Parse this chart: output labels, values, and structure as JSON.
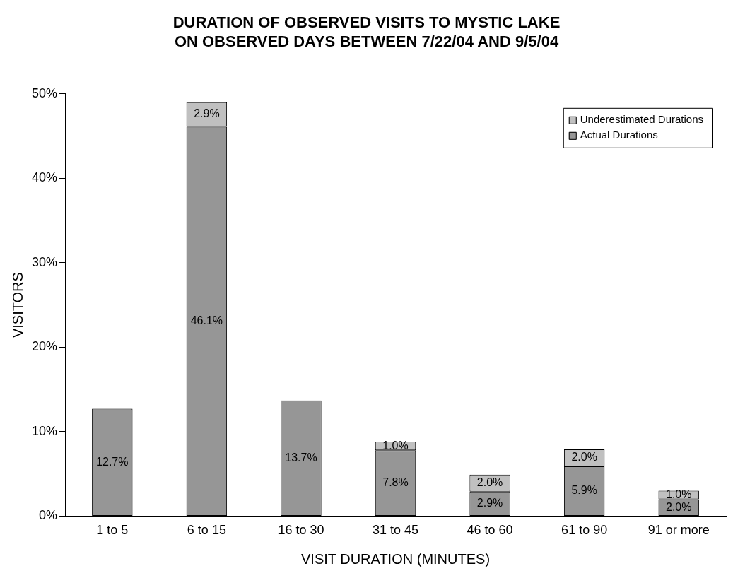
{
  "chart_data": {
    "type": "bar",
    "title": "DURATION OF OBSERVED VISITS TO MYSTIC LAKE\nON OBSERVED DAYS BETWEEN 7/22/04 AND 9/5/04",
    "xlabel": "VISIT DURATION (MINUTES)",
    "ylabel": "VISITORS",
    "categories": [
      "1 to 5",
      "6 to 15",
      "16 to 30",
      "31 to 45",
      "46 to 60",
      "61 to 90",
      "91 or more"
    ],
    "stacked": true,
    "series": [
      {
        "name": "Actual Durations",
        "color": "#969696",
        "values": [
          12.7,
          46.1,
          13.7,
          7.8,
          2.9,
          5.9,
          2.0
        ],
        "value_labels": [
          "12.7%",
          "46.1%",
          "13.7%",
          "7.8%",
          "2.9%",
          "5.9%",
          "2.0%"
        ]
      },
      {
        "name": "Underestimated Durations",
        "color": "#c0c0c0",
        "values": [
          null,
          2.9,
          null,
          1.0,
          2.0,
          2.0,
          1.0
        ],
        "value_labels": [
          null,
          "2.9%",
          null,
          "1.0%",
          "2.0%",
          "2.0%",
          "1.0%"
        ]
      }
    ],
    "ylim": [
      0,
      50
    ],
    "yticks": [
      {
        "value": 0,
        "label": "0%"
      },
      {
        "value": 10,
        "label": "10%"
      },
      {
        "value": 20,
        "label": "20%"
      },
      {
        "value": 30,
        "label": "30%"
      },
      {
        "value": 40,
        "label": "40%"
      },
      {
        "value": 50,
        "label": "50%"
      }
    ],
    "grid": false,
    "legend": "top right"
  }
}
